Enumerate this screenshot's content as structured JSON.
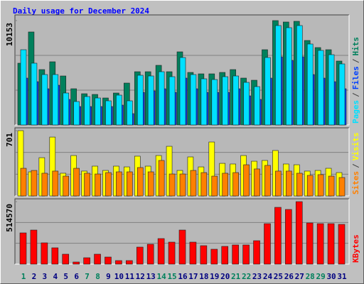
{
  "title": "Daily usage for December 2024",
  "legend_separator": "/",
  "chart_data": [
    {
      "type": "bar",
      "ylim": [
        0,
        10153
      ],
      "yticks": [
        10153
      ],
      "series": [
        {
          "name": "Hits",
          "color": "#00805c",
          "values": [
            6009,
            9048,
            5387,
            6147,
            4766,
            3523,
            3039,
            2970,
            2625,
            3108,
            4075,
            5180,
            5180,
            5802,
            5180,
            7114,
            5111,
            4973,
            4973,
            5111,
            5387,
            4559,
            4351,
            7321,
            10153,
            10015,
            10084,
            8219,
            7529,
            7321,
            6216
          ]
        },
        {
          "name": "Files",
          "color": "#0040ff",
          "values": [
            4559,
            4213,
            3523,
            3868,
            2487,
            1796,
            1796,
            1796,
            1796,
            1934,
            1105,
            3177,
            3315,
            3523,
            3177,
            4559,
            3523,
            3177,
            3177,
            3177,
            3523,
            2832,
            2487,
            4559,
            6631,
            6285,
            6631,
            4904,
            4559,
            4213,
            3523
          ]
        },
        {
          "name": "Pages",
          "color": "#00e0ff",
          "values": [
            7321,
            6009,
            4904,
            4904,
            3108,
            2279,
            2763,
            2625,
            2348,
            2901,
            2348,
            4835,
            4766,
            5180,
            4697,
            6562,
            4904,
            4490,
            4420,
            4697,
            4766,
            4144,
            3730,
            6562,
            9670,
            9463,
            9670,
            7874,
            7252,
            6838,
            5940
          ]
        }
      ]
    },
    {
      "type": "bar",
      "ylim": [
        0,
        701
      ],
      "yticks": [
        701
      ],
      "series": [
        {
          "name": "Visits",
          "color": "#ffff00",
          "values": [
            701,
            259,
            411,
            632,
            244,
            434,
            267,
            320,
            274,
            320,
            312,
            427,
            320,
            434,
            533,
            274,
            419,
            312,
            579,
            350,
            343,
            434,
            373,
            381,
            488,
            343,
            335,
            267,
            274,
            297,
            251
          ]
        },
        {
          "name": "Sites",
          "color": "#ff8000",
          "values": [
            297,
            274,
            244,
            267,
            213,
            297,
            244,
            236,
            251,
            259,
            259,
            305,
            259,
            381,
            236,
            236,
            274,
            251,
            213,
            244,
            251,
            335,
            290,
            328,
            267,
            267,
            244,
            221,
            229,
            213,
            198
          ]
        }
      ]
    },
    {
      "type": "bar",
      "ylim": [
        0,
        514570
      ],
      "yticks": [
        514570
      ],
      "categories": [
        "1",
        "2",
        "3",
        "4",
        "5",
        "6",
        "7",
        "8",
        "9",
        "10",
        "11",
        "12",
        "13",
        "14",
        "15",
        "16",
        "17",
        "18",
        "19",
        "20",
        "21",
        "22",
        "23",
        "24",
        "25",
        "26",
        "27",
        "28",
        "29",
        "30",
        "31"
      ],
      "label_colors": [
        "#00805c",
        "#000080",
        "#000080",
        "#000080",
        "#000080",
        "#000080",
        "#00805c",
        "#00805c",
        "#000080",
        "#000080",
        "#000080",
        "#000080",
        "#000080",
        "#00805c",
        "#00805c",
        "#000080",
        "#000080",
        "#000080",
        "#000080",
        "#000080",
        "#00805c",
        "#00805c",
        "#000080",
        "#000080",
        "#000080",
        "#000080",
        "#000080",
        "#00805c",
        "#00805c",
        "#000080",
        "#000080"
      ],
      "series": [
        {
          "name": "KBytes",
          "color": "#ff0000",
          "values": [
            257271,
            280656,
            175410,
            134481,
            81858,
            17541,
            52623,
            81858,
            58470,
            29235,
            29235,
            140328,
            163716,
            210492,
            181257,
            280656,
            181257,
            152022,
            122787,
            146175,
            157869,
            157869,
            192951,
            333279,
            467780,
            450219,
            514570,
            339126,
            333279,
            333279,
            327432
          ]
        }
      ]
    }
  ]
}
